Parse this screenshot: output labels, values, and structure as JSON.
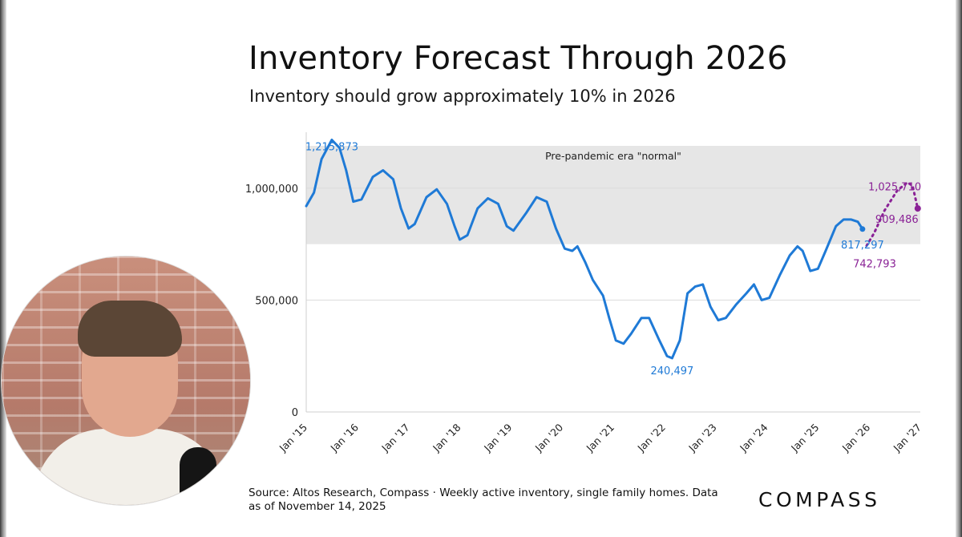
{
  "slide": {
    "title": "Inventory Forecast Through 2026",
    "subtitle": "Inventory should grow approximately 10% in 2026",
    "source": "Source: Altos Research, Compass · Weekly active inventory, single family homes. Data as of November 14, 2025",
    "logo_text": "COMPASS"
  },
  "webcam": {
    "icon": "presenter-webcam-icon"
  },
  "colors": {
    "actual": "#1f7ad6",
    "forecast": "#8a2296",
    "band": "#e6e6e6",
    "grid": "#dcdcdc",
    "axis_text": "#222222"
  },
  "chart_data": {
    "type": "line",
    "title": "Inventory Forecast Through 2026",
    "subtitle": "Inventory should grow approximately 10% in 2026",
    "xlabel": "",
    "ylabel": "",
    "x_ticks": [
      "Jan '15",
      "Jan '16",
      "Jan '17",
      "Jan '18",
      "Jan '19",
      "Jan '20",
      "Jan '21",
      "Jan '22",
      "Jan '23",
      "Jan '24",
      "Jan '25",
      "Jan '26",
      "Jan '27"
    ],
    "xlim": [
      2015.0,
      2027.0
    ],
    "ylim": [
      0,
      1250000
    ],
    "y_ticks": [
      0,
      500000,
      1000000
    ],
    "y_tick_labels": [
      "0",
      "500,000",
      "1,000,000"
    ],
    "grid": true,
    "band": {
      "label": "Pre-pandemic era \"normal\"",
      "y_range": [
        750000,
        1250000
      ]
    },
    "series": [
      {
        "style": "solid",
        "points": [
          [
            2015.0,
            920000
          ],
          [
            2015.15,
            980000
          ],
          [
            2015.3,
            1130000
          ],
          [
            2015.5,
            1215873
          ],
          [
            2015.65,
            1180000
          ],
          [
            2015.78,
            1080000
          ],
          [
            2015.92,
            940000
          ],
          [
            2016.08,
            950000
          ],
          [
            2016.3,
            1050000
          ],
          [
            2016.5,
            1080000
          ],
          [
            2016.7,
            1040000
          ],
          [
            2016.85,
            910000
          ],
          [
            2017.0,
            820000
          ],
          [
            2017.12,
            840000
          ],
          [
            2017.35,
            960000
          ],
          [
            2017.55,
            995000
          ],
          [
            2017.75,
            930000
          ],
          [
            2017.9,
            830000
          ],
          [
            2018.0,
            770000
          ],
          [
            2018.15,
            790000
          ],
          [
            2018.35,
            910000
          ],
          [
            2018.55,
            955000
          ],
          [
            2018.75,
            930000
          ],
          [
            2018.92,
            830000
          ],
          [
            2019.05,
            810000
          ],
          [
            2019.3,
            890000
          ],
          [
            2019.5,
            960000
          ],
          [
            2019.7,
            940000
          ],
          [
            2019.88,
            820000
          ],
          [
            2020.05,
            730000
          ],
          [
            2020.2,
            720000
          ],
          [
            2020.3,
            740000
          ],
          [
            2020.45,
            670000
          ],
          [
            2020.6,
            590000
          ],
          [
            2020.8,
            520000
          ],
          [
            2020.92,
            420000
          ],
          [
            2021.05,
            320000
          ],
          [
            2021.2,
            305000
          ],
          [
            2021.35,
            350000
          ],
          [
            2021.55,
            420000
          ],
          [
            2021.7,
            420000
          ],
          [
            2021.9,
            320000
          ],
          [
            2022.05,
            250000
          ],
          [
            2022.15,
            240497
          ],
          [
            2022.3,
            320000
          ],
          [
            2022.45,
            530000
          ],
          [
            2022.6,
            560000
          ],
          [
            2022.75,
            570000
          ],
          [
            2022.9,
            470000
          ],
          [
            2023.05,
            410000
          ],
          [
            2023.2,
            420000
          ],
          [
            2023.4,
            480000
          ],
          [
            2023.6,
            530000
          ],
          [
            2023.75,
            570000
          ],
          [
            2023.9,
            500000
          ],
          [
            2024.05,
            510000
          ],
          [
            2024.25,
            610000
          ],
          [
            2024.45,
            700000
          ],
          [
            2024.6,
            740000
          ],
          [
            2024.7,
            720000
          ],
          [
            2024.85,
            630000
          ],
          [
            2025.0,
            640000
          ],
          [
            2025.15,
            720000
          ],
          [
            2025.35,
            830000
          ],
          [
            2025.5,
            860000
          ],
          [
            2025.65,
            860000
          ],
          [
            2025.78,
            850000
          ],
          [
            2025.87,
            817297
          ]
        ]
      },
      {
        "style": "dashed",
        "points": [
          [
            2025.95,
            742793
          ],
          [
            2026.1,
            800000
          ],
          [
            2026.3,
            900000
          ],
          [
            2026.55,
            990000
          ],
          [
            2026.75,
            1025710
          ],
          [
            2026.85,
            1010000
          ],
          [
            2026.95,
            909486
          ]
        ]
      }
    ],
    "annotations": [
      {
        "text": "1,215,873",
        "x": 2015.5,
        "y": 1215873,
        "series": 0
      },
      {
        "text": "240,497",
        "x": 2022.15,
        "y": 240497,
        "series": 0
      },
      {
        "text": "817,297",
        "x": 2025.87,
        "y": 817297,
        "series": 0
      },
      {
        "text": "742,793",
        "x": 2025.95,
        "y": 742793,
        "series": 1
      },
      {
        "text": "1,025,710",
        "x": 2026.75,
        "y": 1025710,
        "series": 1
      },
      {
        "text": "909,486",
        "x": 2026.95,
        "y": 909486,
        "series": 1
      }
    ]
  }
}
